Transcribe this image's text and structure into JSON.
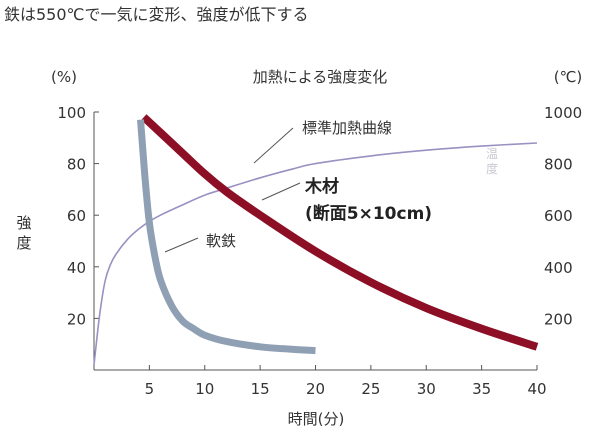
{
  "headline": "鉄は550℃で一気に変形、強度が低下する",
  "chart_data": {
    "type": "line",
    "title": "加熱による強度変化",
    "xlabel": "時間(分)",
    "ylabel": "強度",
    "y_unit": "(%)",
    "y2label": "温度",
    "y2_unit": "(℃)",
    "xlim": [
      0,
      40
    ],
    "ylim": [
      0,
      100
    ],
    "y2lim": [
      0,
      1000
    ],
    "xticks": [
      5,
      10,
      15,
      20,
      25,
      30,
      35,
      40
    ],
    "yticks": [
      20,
      40,
      60,
      80,
      100
    ],
    "y2ticks": [
      200,
      400,
      600,
      800,
      1000
    ],
    "grid": false,
    "series": [
      {
        "name": "標準加熱曲線",
        "axis": "right",
        "color": "#9a90c2",
        "x": [
          0,
          0.5,
          1,
          1.5,
          2,
          3,
          4,
          5,
          6,
          8,
          10,
          12,
          15,
          18,
          20,
          25,
          30,
          35,
          40
        ],
        "y": [
          20,
          210,
          345,
          410,
          450,
          505,
          545,
          576,
          600,
          640,
          678,
          705,
          745,
          780,
          800,
          830,
          852,
          868,
          880
        ]
      },
      {
        "name": "木材",
        "label": "(断面5×10cm)",
        "axis": "left",
        "color": "#8c0f25",
        "x": [
          4.5,
          6,
          8,
          10,
          12,
          15,
          20,
          25,
          30,
          35,
          40
        ],
        "y": [
          98,
          92,
          84,
          76,
          69,
          60,
          46,
          34,
          24,
          16,
          9
        ]
      },
      {
        "name": "軟鉄",
        "axis": "left",
        "color": "#8f9fb4",
        "x": [
          4.2,
          4.6,
          5,
          5.5,
          6,
          7,
          8,
          9,
          10,
          12,
          15,
          18,
          20
        ],
        "y": [
          97,
          75,
          57,
          44,
          35,
          25,
          19,
          16,
          13.5,
          11,
          9,
          8,
          7.5
        ]
      }
    ]
  }
}
